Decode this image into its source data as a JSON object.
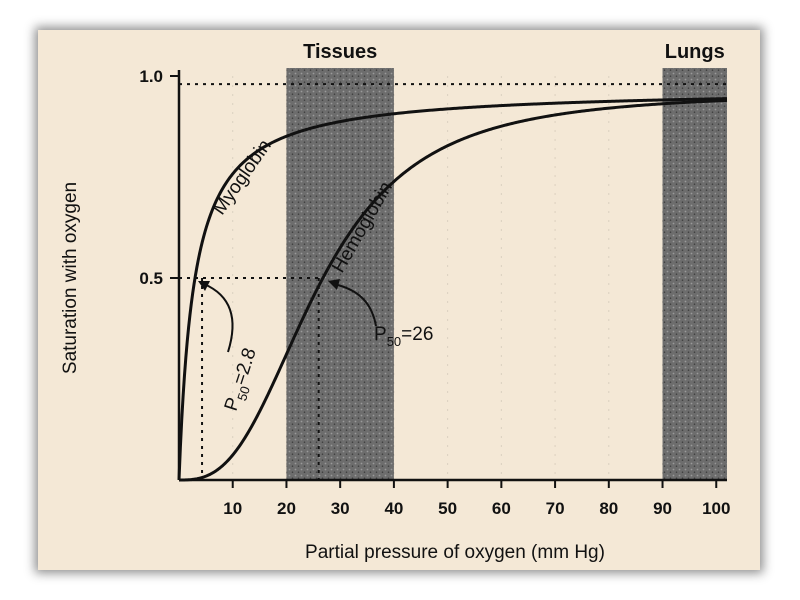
{
  "chart_data": {
    "type": "line",
    "xlabel": "Partial pressure of oxygen (mm Hg)",
    "ylabel": "Saturation with oxygen",
    "xlim": [
      0,
      102
    ],
    "ylim": [
      0,
      1.0
    ],
    "x_ticks": [
      10,
      20,
      30,
      40,
      50,
      60,
      70,
      80,
      90,
      100
    ],
    "y_ticks": [
      {
        "value": 1.0,
        "label": "1.0"
      },
      {
        "value": 0.5,
        "label": "0.5"
      }
    ],
    "regions": [
      {
        "label": "Tissues",
        "x_range": [
          20,
          40
        ]
      },
      {
        "label": "Lungs",
        "x_range": [
          90,
          102
        ]
      }
    ],
    "series": [
      {
        "name": "Myoglobin",
        "model": "hyperbolic",
        "p50": 2.8,
        "hill_n": 1,
        "max": 0.97
      },
      {
        "name": "Hemoglobin",
        "model": "sigmoidal",
        "p50": 26,
        "hill_n": 2.8,
        "max": 0.96
      }
    ],
    "reference_line_y": 0.98,
    "annotations": [
      {
        "id": "mb",
        "prefix": "P",
        "sub": "50",
        "suffix": "=2.8",
        "x": 2.8,
        "y": 0.5
      },
      {
        "id": "hb",
        "prefix": "P",
        "sub": "50",
        "suffix": "=26",
        "x": 26,
        "y": 0.5
      }
    ]
  }
}
